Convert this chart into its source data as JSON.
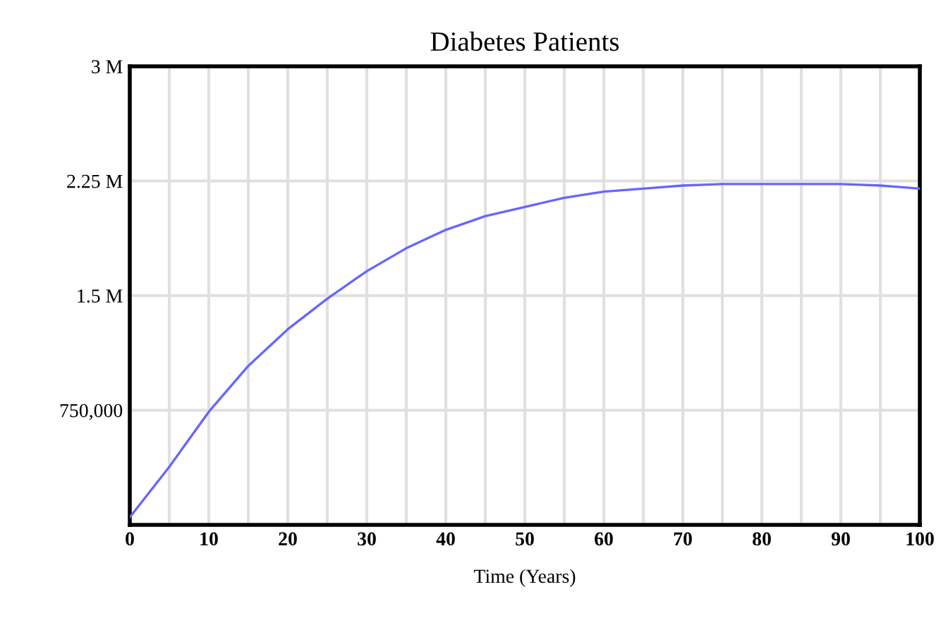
{
  "chart_data": {
    "type": "line",
    "title": "Diabetes Patients",
    "xlabel": "Time (Years)",
    "x": [
      0,
      5,
      10,
      15,
      20,
      25,
      30,
      35,
      40,
      45,
      50,
      55,
      60,
      65,
      70,
      75,
      80,
      85,
      90,
      95,
      100
    ],
    "series": [
      {
        "color": "#6666ff",
        "values": [
          50000,
          380000,
          740000,
          1040000,
          1280000,
          1480000,
          1660000,
          1810000,
          1930000,
          2020000,
          2080000,
          2140000,
          2180000,
          2200000,
          2220000,
          2230000,
          2230000,
          2230000,
          2230000,
          2220000,
          2200000
        ]
      }
    ],
    "xlim": [
      0,
      100
    ],
    "ylim": [
      0,
      3000000
    ],
    "xticks": [
      0,
      {
        "value": 5,
        "label": null
      },
      10,
      {
        "value": 15,
        "label": null
      },
      20,
      {
        "value": 25,
        "label": null
      },
      30,
      {
        "value": 35,
        "label": null
      },
      40,
      {
        "value": 45,
        "label": null
      },
      50,
      {
        "value": 55,
        "label": null
      },
      60,
      {
        "value": 65,
        "label": null
      },
      70,
      {
        "value": 75,
        "label": null
      },
      80,
      {
        "value": 85,
        "label": null
      },
      90,
      {
        "value": 95,
        "label": null
      },
      100
    ],
    "yticks": [
      {
        "value": 0,
        "label": null
      },
      {
        "value": 750000,
        "label": "750,000"
      },
      {
        "value": 1500000,
        "label": "1.5 M"
      },
      {
        "value": 2250000,
        "label": "2.25 M"
      },
      {
        "value": 3000000,
        "label": "3 M"
      }
    ],
    "grid": true,
    "marker": "none",
    "line_style": "solid"
  }
}
